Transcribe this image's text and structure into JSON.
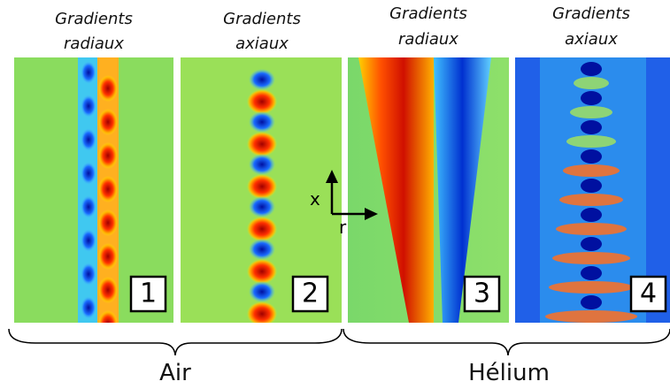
{
  "panels": [
    {
      "title": [
        "Gradients",
        "radiaux"
      ],
      "number": "1"
    },
    {
      "title": [
        "Gradients",
        "axiaux"
      ],
      "number": "2"
    },
    {
      "title": [
        "Gradients",
        "radiaux"
      ],
      "number": "3"
    },
    {
      "title": [
        "Gradients",
        "axiaux"
      ],
      "number": "4"
    }
  ],
  "axes": {
    "x": "x",
    "r": "r"
  },
  "groups": [
    {
      "label": "Air"
    },
    {
      "label": "Hélium"
    }
  ]
}
